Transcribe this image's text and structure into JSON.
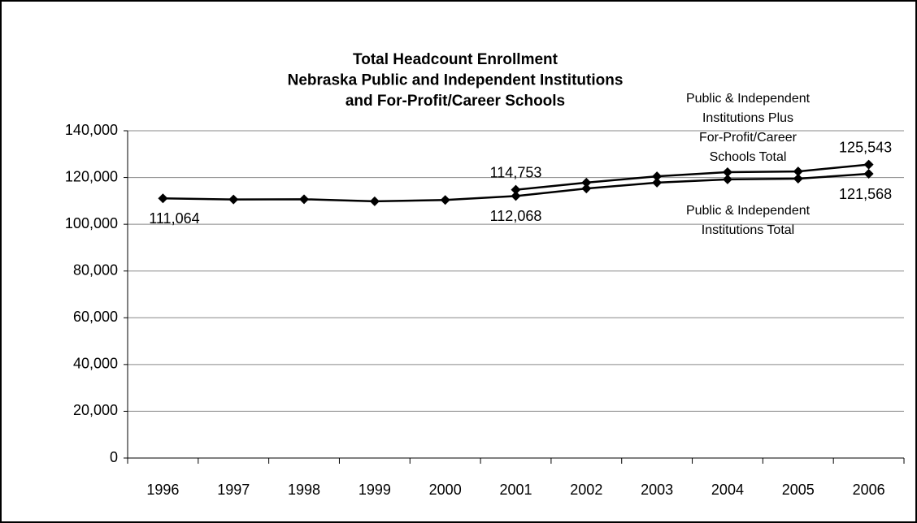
{
  "chart_data": {
    "type": "line",
    "title": [
      "Total Headcount Enrollment",
      "Nebraska Public and Independent Institutions",
      "and For-Profit/Career Schools"
    ],
    "categories": [
      "1996",
      "1997",
      "1998",
      "1999",
      "2000",
      "2001",
      "2002",
      "2003",
      "2004",
      "2005",
      "2006"
    ],
    "series": [
      {
        "name": [
          "Public & Independent",
          "Institutions  Total"
        ],
        "color": "#000000",
        "values": [
          111064,
          110600,
          110700,
          109800,
          110400,
          112068,
          115300,
          117800,
          119200,
          119500,
          121568
        ],
        "value_labels": [
          "111,064",
          null,
          null,
          null,
          null,
          "112,068",
          null,
          null,
          null,
          null,
          "121,568"
        ]
      },
      {
        "name": [
          "Public & Independent",
          "Institutions Plus",
          "For-Profit/Career",
          "Schools Total"
        ],
        "color": "#000000",
        "values": [
          null,
          null,
          null,
          null,
          null,
          114753,
          117800,
          120500,
          122300,
          122600,
          125543
        ],
        "value_labels": [
          null,
          null,
          null,
          null,
          null,
          "114,753",
          null,
          null,
          null,
          null,
          "125,543"
        ]
      }
    ],
    "ylim": [
      0,
      140000
    ],
    "yticks": [
      0,
      {
        "value": 20000,
        "label": "20,000"
      },
      {
        "value": 40000,
        "label": "40,000"
      },
      {
        "value": 60000,
        "label": "60,000"
      },
      {
        "value": 80000,
        "label": "80,000"
      },
      {
        "value": 100000,
        "label": "100,000"
      },
      {
        "value": 120000,
        "label": "120,000"
      },
      {
        "value": 140000,
        "label": "140,000"
      }
    ],
    "grid": true
  }
}
